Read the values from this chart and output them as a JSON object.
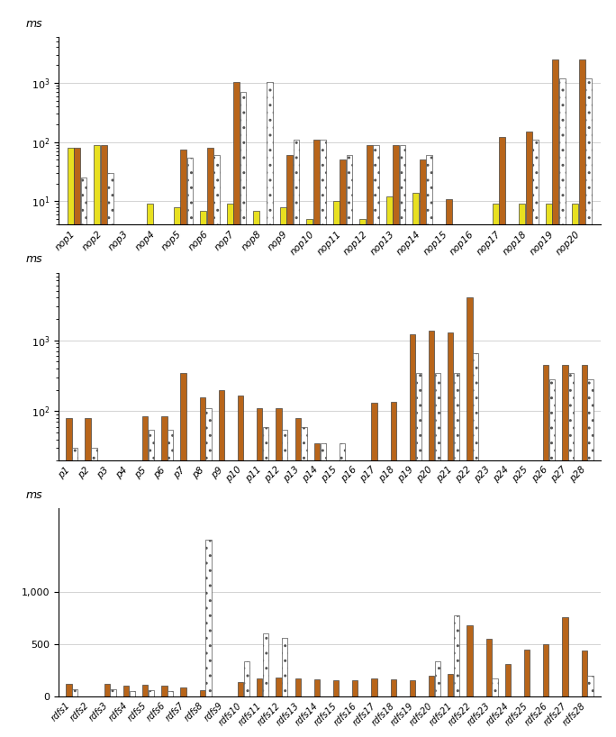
{
  "chart1": {
    "categories": [
      "nop1",
      "nop2",
      "nop3",
      "nop4",
      "nop5",
      "nop6",
      "nop7",
      "nop8",
      "nop9",
      "nop10",
      "nop11",
      "nop12",
      "nop13",
      "nop14",
      "nop15",
      "nop16",
      "nop17",
      "nop18",
      "nop19",
      "nop20"
    ],
    "sparql": [
      80,
      90,
      null,
      9,
      8,
      7,
      9,
      7,
      8,
      5,
      10,
      5,
      12,
      14,
      null,
      null,
      9,
      9,
      9,
      9
    ],
    "treesolver": [
      80,
      90,
      null,
      null,
      75,
      80,
      1050,
      null,
      60,
      110,
      50,
      90,
      90,
      50,
      11,
      null,
      120,
      150,
      2500,
      2500
    ],
    "afmu": [
      25,
      30,
      null,
      null,
      55,
      60,
      700,
      1050,
      110,
      110,
      60,
      90,
      90,
      60,
      null,
      null,
      null,
      110,
      1200,
      1200
    ]
  },
  "chart2": {
    "categories": [
      "p1",
      "p2",
      "p3",
      "p4",
      "p5",
      "p6",
      "p7",
      "p8",
      "p9",
      "p10",
      "p11",
      "p12",
      "p13",
      "p14",
      "p15",
      "p16",
      "p17",
      "p18",
      "p19",
      "p20",
      "p21",
      "p22",
      "p23",
      "p24",
      "p25",
      "p26",
      "p27",
      "p28"
    ],
    "treesolver": [
      80,
      80,
      null,
      null,
      85,
      85,
      350,
      155,
      200,
      165,
      110,
      110,
      80,
      35,
      null,
      null,
      130,
      135,
      1200,
      1350,
      1300,
      4000,
      null,
      null,
      null,
      450,
      450,
      450
    ],
    "afmu": [
      30,
      30,
      null,
      null,
      55,
      55,
      null,
      110,
      null,
      null,
      60,
      55,
      60,
      35,
      35,
      null,
      null,
      null,
      350,
      350,
      350,
      650,
      null,
      null,
      null,
      280,
      350,
      280
    ]
  },
  "chart3": {
    "categories": [
      "rdfs1",
      "rdfs2",
      "rdfs3",
      "rdfs4",
      "rdfs5",
      "rdfs6",
      "rdfs7",
      "rdfs8",
      "rdfs9",
      "rdfs10",
      "rdfs11",
      "rdfs12",
      "rdfs13",
      "rdfs14",
      "rdfs15",
      "rdfs16",
      "rdfs17",
      "rdfs18",
      "rdfs19",
      "rdfs20",
      "rdfs21",
      "rdfs22",
      "rdfs23",
      "rdfs24",
      "rdfs25",
      "rdfs26",
      "rdfs27",
      "rdfs28"
    ],
    "treesolver": [
      120,
      null,
      120,
      100,
      110,
      100,
      90,
      60,
      null,
      140,
      170,
      180,
      175,
      160,
      155,
      155,
      170,
      165,
      155,
      200,
      215,
      680,
      555,
      310,
      450,
      500,
      760,
      440
    ],
    "afmu": [
      65,
      null,
      70,
      50,
      60,
      55,
      null,
      1500,
      null,
      340,
      600,
      565,
      null,
      null,
      null,
      null,
      null,
      null,
      null,
      340,
      780,
      null,
      170,
      null,
      null,
      null,
      null,
      200
    ]
  }
}
